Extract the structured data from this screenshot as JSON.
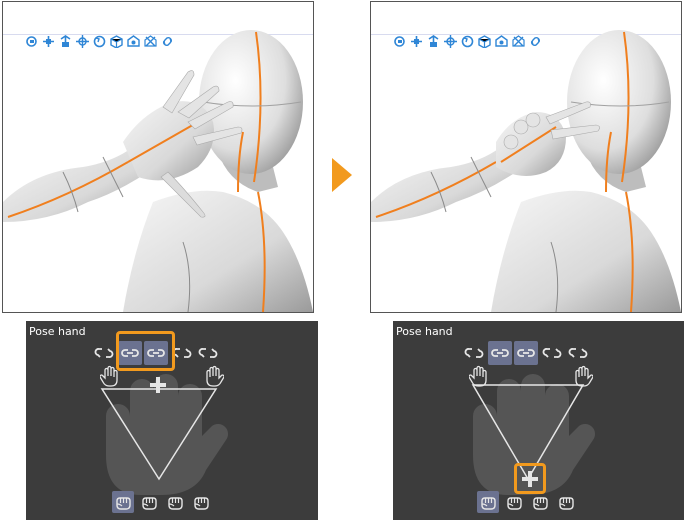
{
  "colors": {
    "accent_orange": "#f29a1e",
    "panel_bg": "#3c3c3c",
    "active_button": "#6b7290",
    "toolbar_icon": "#2f86d6"
  },
  "toolbar": {
    "icons": [
      "move-camera-icon",
      "pan-icon",
      "zoom-icon",
      "rotate-icon",
      "rotate-object-icon",
      "pose-icon",
      "preset-icon",
      "reset-icon",
      "link-icon"
    ]
  },
  "left_panel": {
    "title": "Pose hand",
    "lock_buttons": [
      {
        "icon": "link-icon",
        "active": false
      },
      {
        "icon": "link-icon",
        "active": true
      },
      {
        "icon": "link-icon",
        "active": true
      },
      {
        "icon": "link-icon",
        "active": false
      },
      {
        "icon": "link-icon",
        "active": false
      }
    ],
    "fist_buttons": [
      {
        "icon": "fist-icon",
        "active": true
      },
      {
        "icon": "fist-icon",
        "active": false
      },
      {
        "icon": "fist-icon",
        "active": false
      },
      {
        "icon": "fist-icon",
        "active": false
      }
    ]
  },
  "right_panel": {
    "title": "Pose hand",
    "lock_buttons": [
      {
        "icon": "link-icon",
        "active": false
      },
      {
        "icon": "link-icon",
        "active": true
      },
      {
        "icon": "link-icon",
        "active": true
      },
      {
        "icon": "link-icon",
        "active": false
      },
      {
        "icon": "link-icon",
        "active": false
      }
    ],
    "fist_buttons": [
      {
        "icon": "fist-icon",
        "active": true
      },
      {
        "icon": "fist-icon",
        "active": false
      },
      {
        "icon": "fist-icon",
        "active": false
      },
      {
        "icon": "fist-icon",
        "active": false
      }
    ]
  }
}
